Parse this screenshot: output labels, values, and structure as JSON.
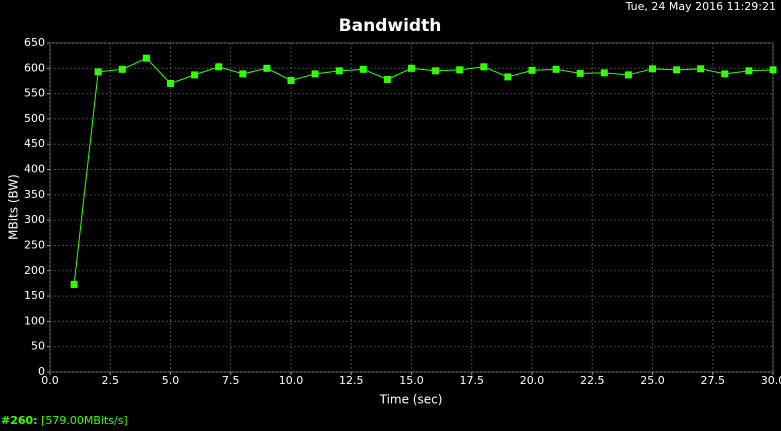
{
  "chart_data": {
    "type": "line",
    "title": "Bandwidth",
    "timestamp": "Tue, 24 May 2016 11:29:21",
    "x_label": "Time (sec)",
    "y_label": "MBits (BW)",
    "x": [
      1,
      2,
      3,
      4,
      5,
      6,
      7,
      8,
      9,
      10,
      11,
      12,
      13,
      14,
      15,
      16,
      17,
      18,
      19,
      20,
      21,
      22,
      23,
      24,
      25,
      26,
      27,
      28,
      29,
      30
    ],
    "series": [
      {
        "name": "Bandwidth",
        "color": "#33ff00",
        "values": [
          173,
          593,
          598,
          620,
          570,
          587,
          603,
          589,
          600,
          576,
          589,
          595,
          598,
          578,
          600,
          595,
          597,
          603,
          583,
          596,
          598,
          590,
          591,
          587,
          599,
          597,
          599,
          589,
          595,
          597
        ]
      }
    ],
    "xlim": [
      0,
      30
    ],
    "ylim": [
      0,
      650
    ],
    "xticks": [
      {
        "value": 0,
        "label": "0.0"
      },
      2.5,
      {
        "value": 5,
        "label": "5.0"
      },
      7.5,
      {
        "value": 10,
        "label": "10.0"
      },
      12.5,
      {
        "value": 15,
        "label": "15.0"
      },
      17.5,
      {
        "value": 20,
        "label": "20.0"
      },
      22.5,
      {
        "value": 25,
        "label": "25.0"
      },
      27.5,
      {
        "value": 30,
        "label": "30.0"
      }
    ],
    "yticks": [
      0,
      50,
      100,
      150,
      200,
      250,
      300,
      350,
      400,
      450,
      500,
      550,
      600,
      650
    ],
    "grid": true,
    "status": {
      "id": "#260:",
      "value": "[579.00MBits/s]"
    }
  }
}
